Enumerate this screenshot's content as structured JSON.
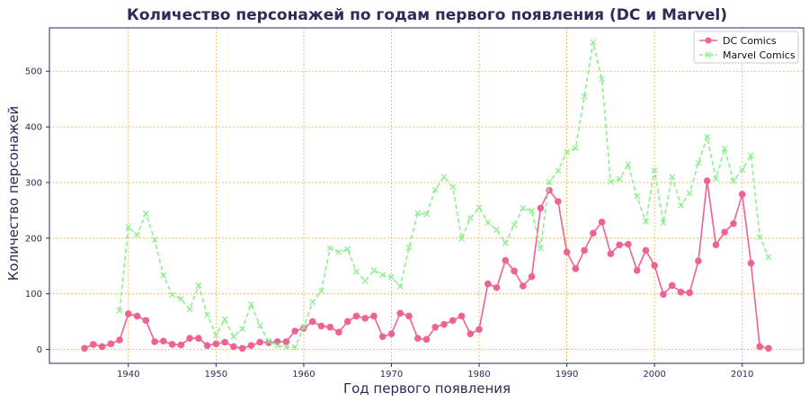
{
  "chart_data": {
    "type": "line",
    "title": "Количество персонажей по годам первого появления (DC и Marvel)",
    "xlabel": "Год первого появления",
    "ylabel": "Количество персонажей",
    "xlim": [
      1931,
      2017
    ],
    "ylim": [
      -25,
      578
    ],
    "xticks": [
      1940,
      1950,
      1960,
      1970,
      1980,
      1990,
      2000,
      2010
    ],
    "yticks": [
      0,
      100,
      200,
      300,
      400,
      500
    ],
    "grid": true,
    "grid_color": "#f5b041",
    "axis_color": "#2e2a5a",
    "legend_position": "top-right",
    "series": [
      {
        "name": "DC Comics",
        "color": "#f06292",
        "line_style": "solid",
        "marker": "circle",
        "x": [
          1935,
          1936,
          1937,
          1938,
          1939,
          1940,
          1941,
          1942,
          1943,
          1944,
          1945,
          1946,
          1947,
          1948,
          1949,
          1950,
          1951,
          1952,
          1953,
          1954,
          1955,
          1956,
          1957,
          1958,
          1959,
          1960,
          1961,
          1962,
          1963,
          1964,
          1965,
          1966,
          1967,
          1968,
          1969,
          1970,
          1971,
          1972,
          1973,
          1974,
          1975,
          1976,
          1977,
          1978,
          1979,
          1980,
          1981,
          1982,
          1983,
          1984,
          1985,
          1986,
          1987,
          1988,
          1989,
          1990,
          1991,
          1992,
          1993,
          1994,
          1995,
          1996,
          1997,
          1998,
          1999,
          2000,
          2001,
          2002,
          2003,
          2004,
          2005,
          2006,
          2007,
          2008,
          2009,
          2010,
          2011,
          2012,
          2013
        ],
        "y": [
          2,
          9,
          5,
          10,
          17,
          64,
          60,
          52,
          14,
          15,
          9,
          8,
          20,
          20,
          7,
          10,
          13,
          5,
          2,
          7,
          13,
          12,
          14,
          14,
          33,
          38,
          50,
          42,
          40,
          31,
          50,
          60,
          56,
          60,
          23,
          28,
          65,
          60,
          20,
          18,
          40,
          45,
          52,
          60,
          28,
          36,
          118,
          111,
          160,
          141,
          114,
          131,
          254,
          286,
          266,
          175,
          145,
          178,
          209,
          229,
          172,
          188,
          189,
          142,
          178,
          151,
          99,
          115,
          103,
          102,
          159,
          303,
          188,
          211,
          226,
          279,
          155,
          5,
          2
        ]
      },
      {
        "name": "Marvel Comics",
        "color": "#90ee90",
        "line_style": "dashed",
        "marker": "x",
        "x": [
          1939,
          1940,
          1941,
          1942,
          1943,
          1944,
          1945,
          1946,
          1947,
          1948,
          1949,
          1950,
          1951,
          1952,
          1953,
          1954,
          1955,
          1956,
          1957,
          1958,
          1959,
          1960,
          1961,
          1962,
          1963,
          1964,
          1965,
          1966,
          1967,
          1968,
          1969,
          1970,
          1971,
          1972,
          1973,
          1974,
          1975,
          1976,
          1977,
          1978,
          1979,
          1980,
          1981,
          1982,
          1983,
          1984,
          1985,
          1986,
          1987,
          1988,
          1989,
          1990,
          1991,
          1992,
          1993,
          1994,
          1995,
          1996,
          1997,
          1998,
          1999,
          2000,
          2001,
          2002,
          2003,
          2004,
          2005,
          2006,
          2007,
          2008,
          2009,
          2010,
          2011,
          2012,
          2013
        ],
        "y": [
          70,
          220,
          206,
          244,
          197,
          133,
          98,
          91,
          72,
          115,
          62,
          26,
          54,
          23,
          37,
          81,
          43,
          15,
          7,
          4,
          4,
          40,
          85,
          105,
          182,
          175,
          180,
          140,
          123,
          142,
          134,
          130,
          113,
          183,
          245,
          243,
          287,
          310,
          292,
          199,
          236,
          255,
          228,
          215,
          191,
          224,
          254,
          249,
          182,
          301,
          321,
          355,
          362,
          455,
          552,
          486,
          301,
          306,
          333,
          275,
          230,
          322,
          228,
          310,
          259,
          281,
          335,
          382,
          307,
          361,
          303,
          323,
          349,
          202,
          166
        ]
      }
    ]
  }
}
